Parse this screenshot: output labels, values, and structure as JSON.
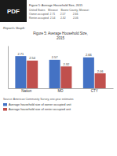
{
  "chart_data": {
    "type": "bar",
    "title": "Figure 5: Average Household Size,\n2015",
    "categories": [
      "Nation",
      "MO",
      "CTY"
    ],
    "series": [
      {
        "name": "Average household size of owner occupied unit",
        "color": "#4472c4",
        "values": [
          2.71,
          2.57,
          2.66
        ]
      },
      {
        "name": "Average household size of renter occupied unit",
        "color": "#c0504d",
        "values": [
          2.54,
          2.32,
          2.06
        ]
      }
    ],
    "ylim": [
      1.5,
      3.1
    ],
    "tick_labels": "x",
    "data_labels": true,
    "grid": false,
    "legend": "bottom",
    "annotations": [
      "PDF",
      "Figure 5: Average Household Size, 2015",
      "United States    Missouri    Boone County, Missouri",
      "Owner-occupied  2.71       2.57          2.66",
      "Renter-occupied  2.54       2.32          2.06",
      "Report's Graph:",
      "Source: American Community Survey, one-year estimates"
    ]
  }
}
